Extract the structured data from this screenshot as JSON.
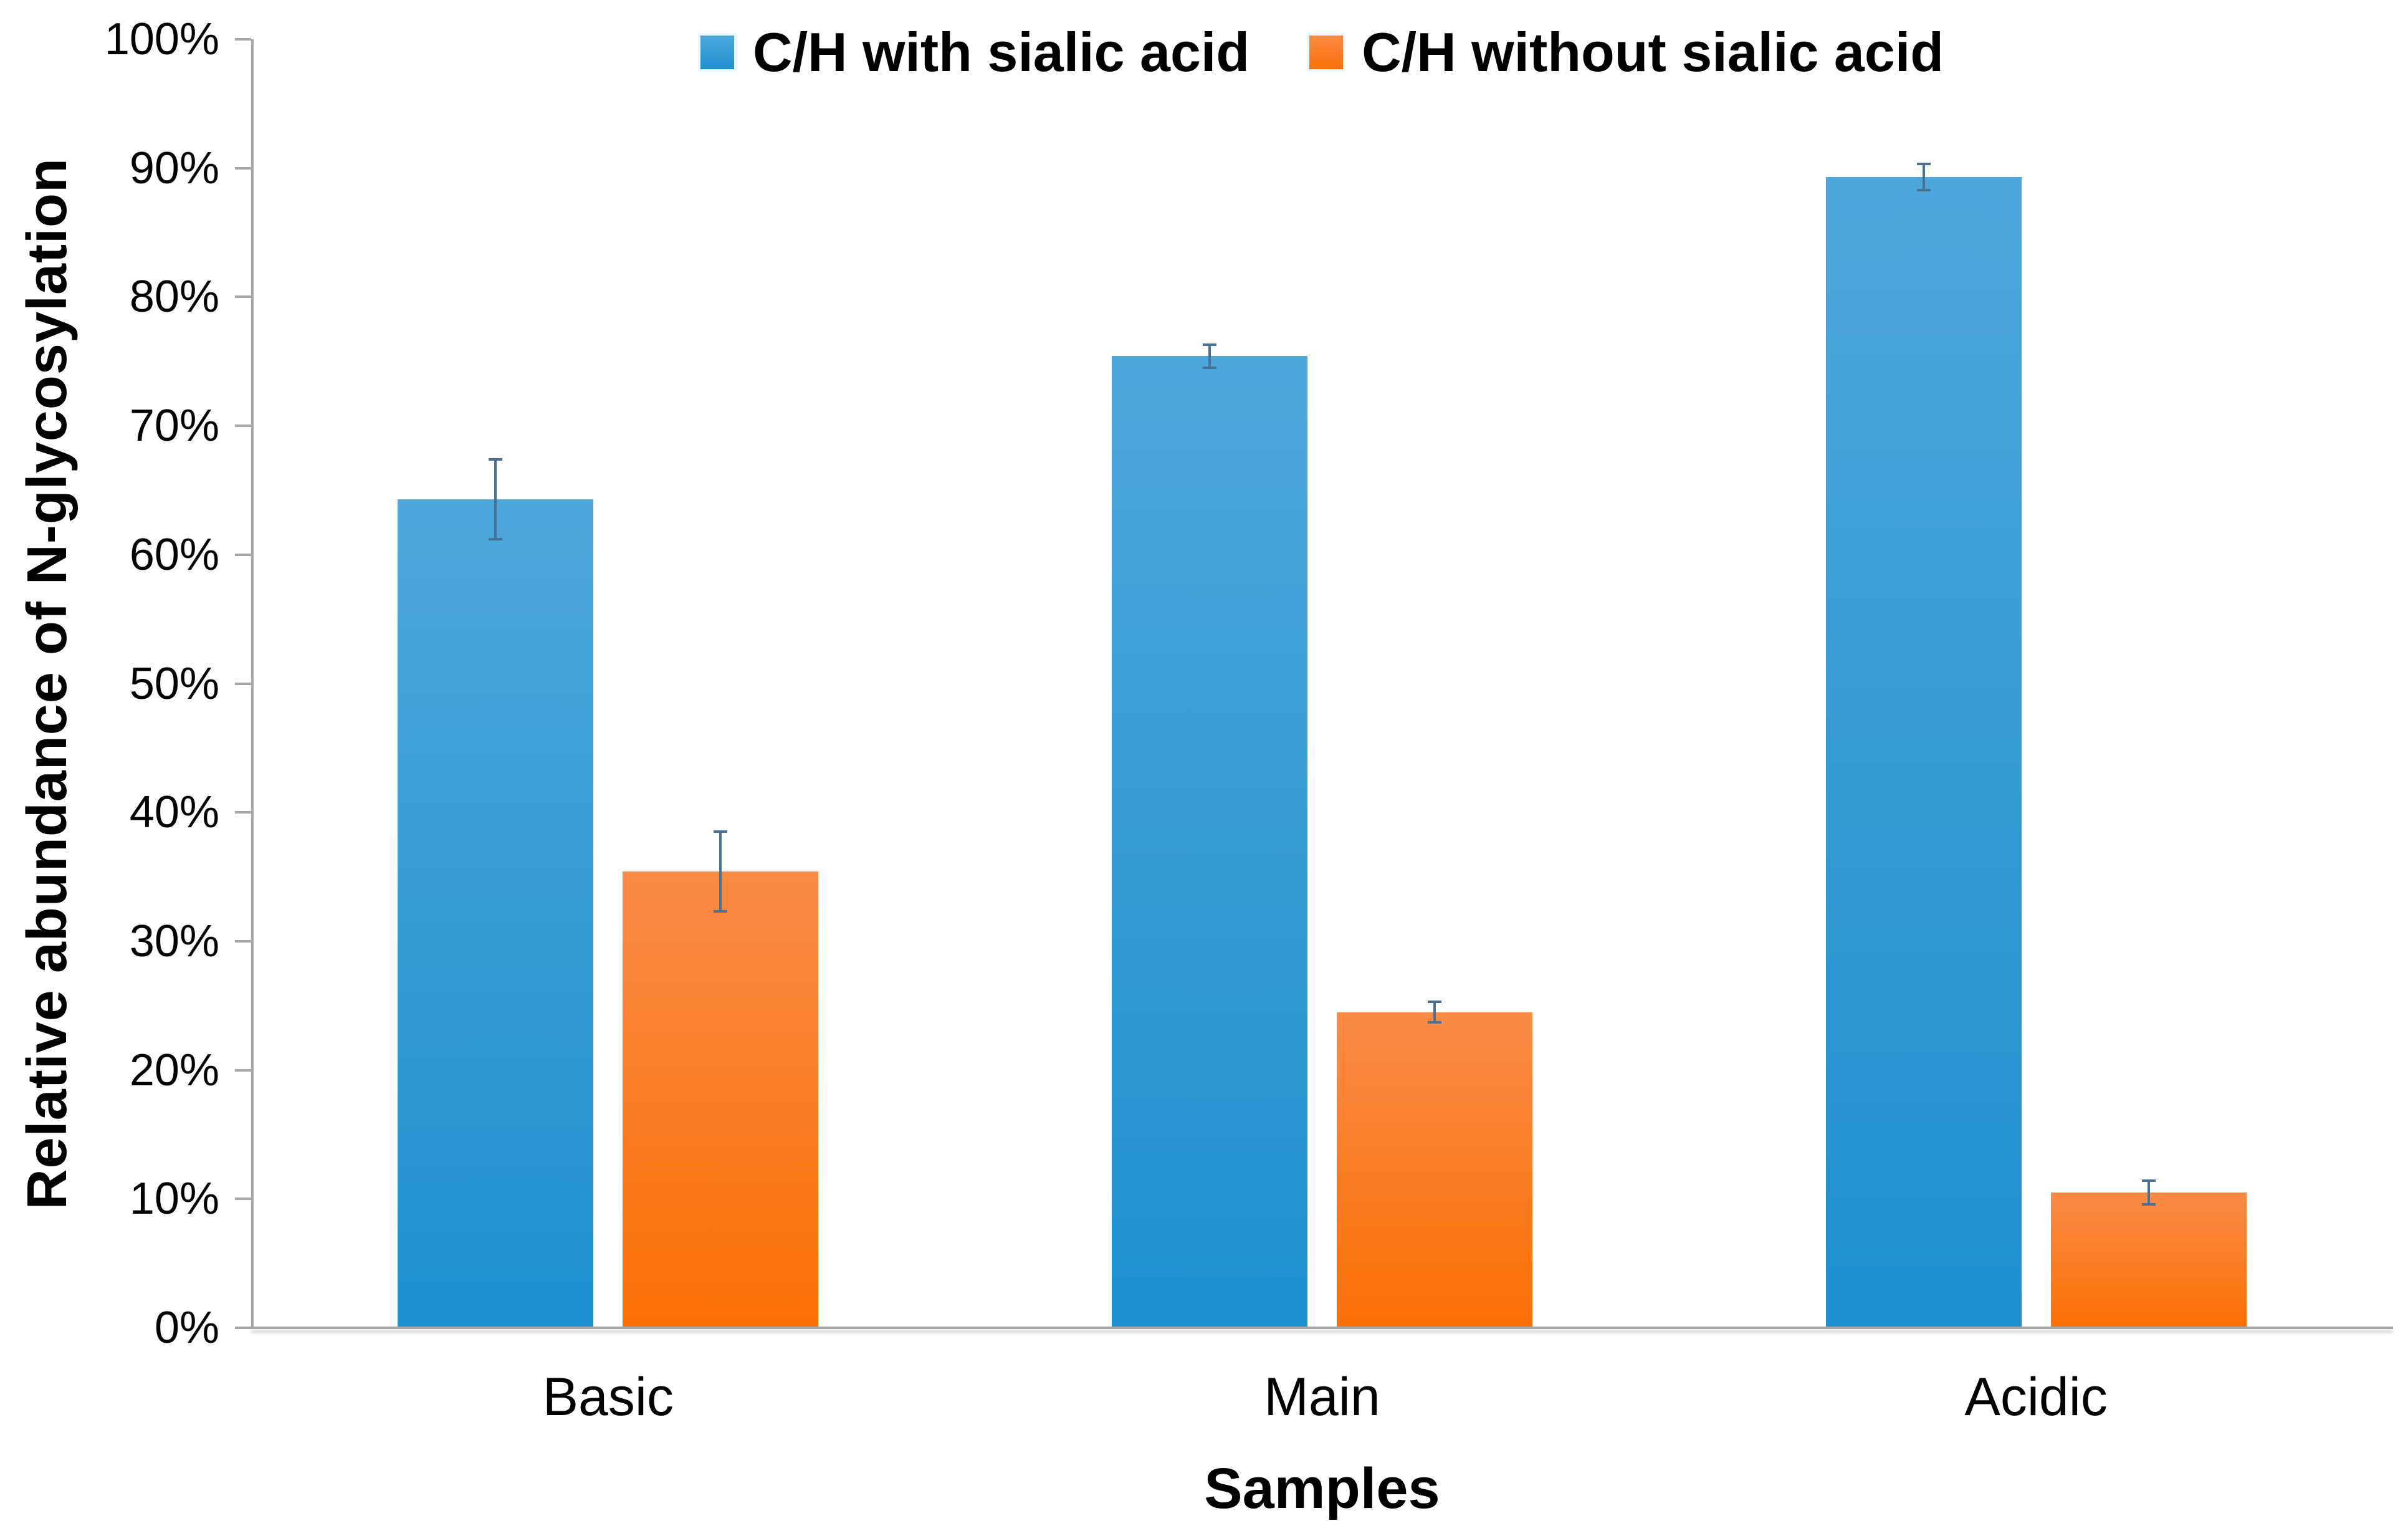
{
  "figure": {
    "background": "#ffffff",
    "text_color": "#000000",
    "axis_color": "#a6a6a6",
    "error_bar_color": "#4a7298"
  },
  "chart_data": {
    "type": "bar",
    "title": "",
    "categories": [
      "Basic",
      "Main",
      "Acidic"
    ],
    "series": [
      {
        "name": "C/H with sialic acid",
        "values": [
          64.3,
          75.4,
          89.3
        ],
        "errors": [
          3.2,
          1.0,
          1.1
        ],
        "fill_top": "#4ea7db",
        "fill_bottom": "#1e90cf"
      },
      {
        "name": "C/H without sialic acid",
        "values": [
          35.4,
          24.5,
          10.5
        ],
        "errors": [
          3.2,
          0.9,
          1.0
        ],
        "fill_top": "#f98b47",
        "fill_bottom": "#fb7005"
      }
    ],
    "xlabel": "Samples",
    "ylabel": "Relative abundance of N-glycosylation",
    "ylim": [
      0,
      100
    ],
    "ytick_step": 10,
    "ytick_labels": [
      "0%",
      "10%",
      "20%",
      "30%",
      "40%",
      "50%",
      "60%",
      "70%",
      "80%",
      "90%",
      "100%"
    ],
    "grid": false,
    "legend_position": "top-center",
    "error_bars": true
  }
}
